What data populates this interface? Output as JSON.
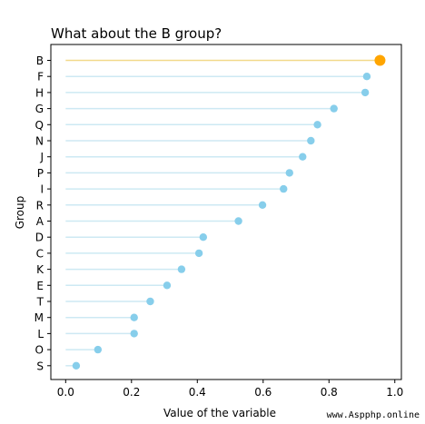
{
  "chart_data": {
    "type": "lollipop",
    "title": "What about the B group?",
    "xlabel": "Value of the variable",
    "ylabel": "Group",
    "xlim": [
      -0.045,
      1.02
    ],
    "xticks": [
      0.0,
      0.2,
      0.4,
      0.6,
      0.8,
      1.0
    ],
    "xtick_labels": [
      "0.0",
      "0.2",
      "0.4",
      "0.6",
      "0.8",
      "1.0"
    ],
    "grid": false,
    "highlight": "B",
    "colors": {
      "default_line": "#cde9f3",
      "default_marker": "#87ceeb",
      "highlight_line": "#f2d98a",
      "highlight_marker": "#ffa500"
    },
    "categories": [
      "B",
      "F",
      "H",
      "G",
      "Q",
      "N",
      "J",
      "P",
      "I",
      "R",
      "A",
      "D",
      "C",
      "K",
      "E",
      "T",
      "M",
      "L",
      "O",
      "S"
    ],
    "values": [
      0.955,
      0.915,
      0.91,
      0.815,
      0.765,
      0.745,
      0.72,
      0.68,
      0.662,
      0.598,
      0.525,
      0.418,
      0.405,
      0.352,
      0.308,
      0.257,
      0.208,
      0.208,
      0.098,
      0.032
    ]
  },
  "watermark": "www.Aspphp.online"
}
